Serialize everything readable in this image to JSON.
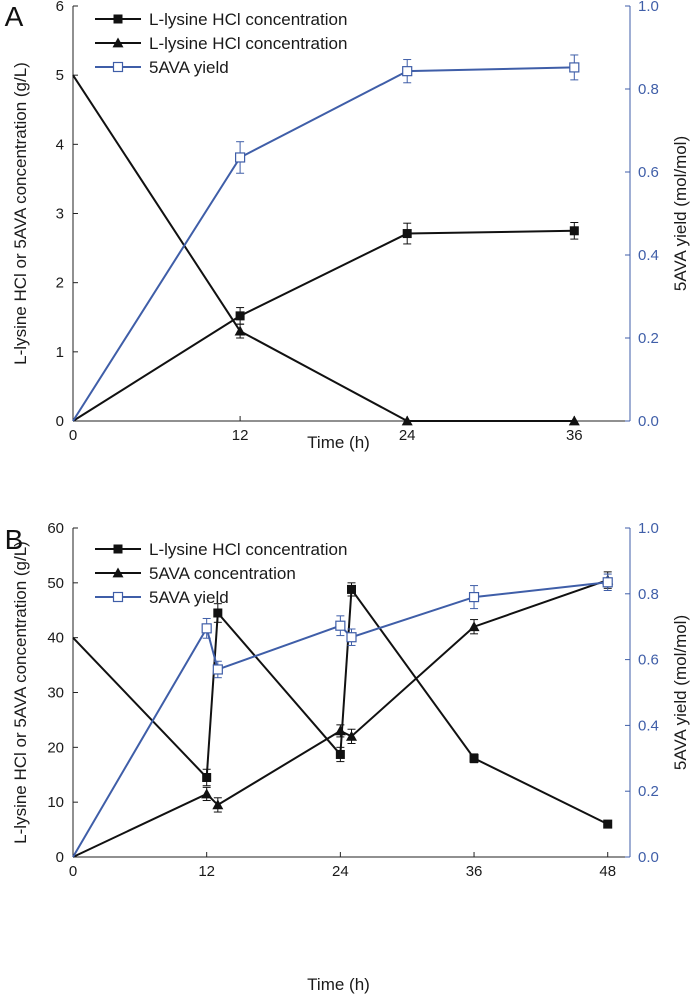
{
  "colors": {
    "primary": "#111111",
    "accent": "#3f5ea8"
  },
  "chart_data": [
    {
      "panel": "A",
      "type": "line",
      "x_label": "Time (h)",
      "y_left_label": "L-lysine HCl or 5AVA concentration (g/L)",
      "y_right_label": "5AVA yield (mol/mol)",
      "x_range": [
        0,
        40
      ],
      "y_left_range": [
        0,
        6
      ],
      "y_right_range": [
        0,
        1.0
      ],
      "x_ticks": [
        "0",
        "12",
        "24",
        "36"
      ],
      "y_left_ticks": [
        "0",
        "1",
        "2",
        "3",
        "4",
        "5",
        "6"
      ],
      "y_right_ticks": [
        "0.0",
        "0.2",
        "0.4",
        "0.6",
        "0.8",
        "1.0"
      ],
      "legend": [
        "L-lysine HCl concentration",
        "L-lysine HCl concentration",
        "5AVA yield"
      ],
      "series": [
        {
          "name": "L-lysine HCl concentration",
          "marker": "square-filled",
          "axis": "left",
          "color": "#111111",
          "x": [
            0,
            12,
            24,
            36
          ],
          "y": [
            0,
            1.52,
            2.71,
            2.75
          ],
          "err": [
            0,
            0.12,
            0.15,
            0.12
          ]
        },
        {
          "name": "L-lysine HCl concentration",
          "marker": "triangle-filled",
          "axis": "left",
          "color": "#111111",
          "x": [
            0,
            12,
            24,
            36
          ],
          "y": [
            5.0,
            1.3,
            0,
            0
          ],
          "err": [
            0,
            0.1,
            0,
            0
          ]
        },
        {
          "name": "5AVA yield",
          "marker": "square-open",
          "axis": "right",
          "color": "#3f5ea8",
          "x": [
            0,
            12,
            24,
            36
          ],
          "y": [
            0,
            0.635,
            0.843,
            0.852
          ],
          "err": [
            0,
            0.038,
            0.028,
            0.03
          ]
        }
      ]
    },
    {
      "panel": "B",
      "type": "line",
      "x_label": "Time (h)",
      "y_left_label": "L-lysine HCl or 5AVA concentration (g/L)",
      "y_right_label": "5AVA yield (mol/mol)",
      "x_range": [
        0,
        50
      ],
      "y_left_range": [
        0,
        60
      ],
      "y_right_range": [
        0,
        1.0
      ],
      "x_ticks": [
        "0",
        "12",
        "24",
        "36",
        "48"
      ],
      "y_left_ticks": [
        "0",
        "10",
        "20",
        "30",
        "40",
        "50",
        "60"
      ],
      "y_right_ticks": [
        "0.0",
        "0.2",
        "0.4",
        "0.6",
        "0.8",
        "1.0"
      ],
      "legend": [
        "L-lysine HCl concentration",
        "5AVA concentration",
        "5AVA yield"
      ],
      "series": [
        {
          "name": "L-lysine HCl concentration",
          "marker": "square-filled",
          "axis": "left",
          "color": "#111111",
          "x": [
            0,
            12,
            13,
            24,
            25,
            36,
            48
          ],
          "y": [
            40,
            14.5,
            44.5,
            18.7,
            48.8,
            18,
            6
          ],
          "err": [
            0,
            1.5,
            1.7,
            1.3,
            1.2,
            0.8,
            0
          ]
        },
        {
          "name": "5AVA concentration",
          "marker": "triangle-filled",
          "axis": "left",
          "color": "#111111",
          "x": [
            0,
            12,
            13,
            24,
            25,
            36,
            48
          ],
          "y": [
            0,
            11.5,
            9.5,
            23,
            22,
            42,
            50.5
          ],
          "err": [
            0,
            1.2,
            1.3,
            1.1,
            1.3,
            1.3,
            1.5
          ]
        },
        {
          "name": "5AVA yield",
          "marker": "square-open",
          "axis": "right",
          "color": "#3f5ea8",
          "x": [
            0,
            12,
            13,
            24,
            25,
            36,
            48
          ],
          "y": [
            0,
            0.695,
            0.57,
            0.703,
            0.668,
            0.79,
            0.835
          ],
          "err": [
            0,
            0.03,
            0.025,
            0.03,
            0.025,
            0.035,
            0.025
          ]
        }
      ]
    }
  ]
}
